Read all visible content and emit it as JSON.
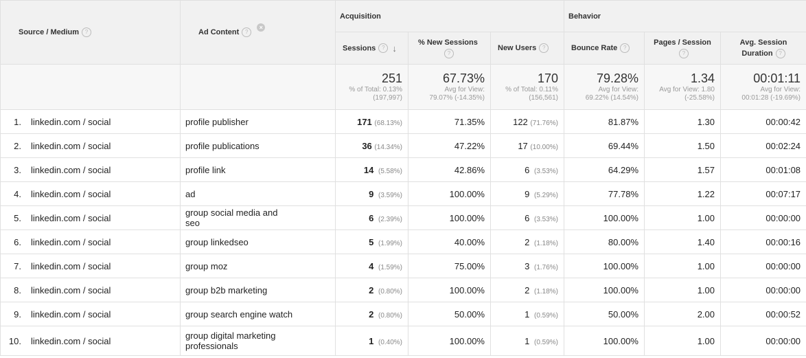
{
  "headers": {
    "source_medium": "Source / Medium",
    "ad_content": "Ad Content",
    "acquisition": "Acquisition",
    "behavior": "Behavior",
    "sessions": "Sessions",
    "new_sessions": "% New Sessions",
    "new_users": "New Users",
    "bounce_rate": "Bounce Rate",
    "pages_session": "Pages / Session",
    "avg_duration": "Avg. Session Duration"
  },
  "totals": {
    "sessions": "251",
    "sessions_sub1": "% of Total: 0.13%",
    "sessions_sub2": "(197,997)",
    "new_sessions": "67.73%",
    "new_sessions_sub1": "Avg for View:",
    "new_sessions_sub2": "79.07% (-14.35%)",
    "new_users": "170",
    "new_users_sub1": "% of Total: 0.11%",
    "new_users_sub2": "(156,561)",
    "bounce_rate": "79.28%",
    "bounce_rate_sub1": "Avg for View:",
    "bounce_rate_sub2": "69.22% (14.54%)",
    "pages_session": "1.34",
    "pages_session_sub1": "Avg for View: 1.80",
    "pages_session_sub2": "(-25.58%)",
    "avg_duration": "00:01:11",
    "avg_duration_sub1": "Avg for View:",
    "avg_duration_sub2": "00:01:28 (-19.69%)"
  },
  "rows": [
    {
      "num": "1.",
      "source": "linkedin.com / social",
      "ad": "profile publisher",
      "sessions": "171",
      "sessions_pct": "(68.13%)",
      "new_sessions": "71.35%",
      "new_users": "122",
      "new_users_pct": "(71.76%)",
      "bounce": "81.87%",
      "pages": "1.30",
      "duration": "00:00:42"
    },
    {
      "num": "2.",
      "source": "linkedin.com / social",
      "ad": "profile publications",
      "sessions": "36",
      "sessions_pct": "(14.34%)",
      "new_sessions": "47.22%",
      "new_users": "17",
      "new_users_pct": "(10.00%)",
      "bounce": "69.44%",
      "pages": "1.50",
      "duration": "00:02:24"
    },
    {
      "num": "3.",
      "source": "linkedin.com / social",
      "ad": "profile link",
      "sessions": "14",
      "sessions_pct": "(5.58%)",
      "new_sessions": "42.86%",
      "new_users": "6",
      "new_users_pct": "(3.53%)",
      "bounce": "64.29%",
      "pages": "1.57",
      "duration": "00:01:08"
    },
    {
      "num": "4.",
      "source": "linkedin.com / social",
      "ad": "ad",
      "sessions": "9",
      "sessions_pct": "(3.59%)",
      "new_sessions": "100.00%",
      "new_users": "9",
      "new_users_pct": "(5.29%)",
      "bounce": "77.78%",
      "pages": "1.22",
      "duration": "00:07:17"
    },
    {
      "num": "5.",
      "source": "linkedin.com / social",
      "ad": "group social media and seo",
      "sessions": "6",
      "sessions_pct": "(2.39%)",
      "new_sessions": "100.00%",
      "new_users": "6",
      "new_users_pct": "(3.53%)",
      "bounce": "100.00%",
      "pages": "1.00",
      "duration": "00:00:00"
    },
    {
      "num": "6.",
      "source": "linkedin.com / social",
      "ad": "group linkedseo",
      "sessions": "5",
      "sessions_pct": "(1.99%)",
      "new_sessions": "40.00%",
      "new_users": "2",
      "new_users_pct": "(1.18%)",
      "bounce": "80.00%",
      "pages": "1.40",
      "duration": "00:00:16"
    },
    {
      "num": "7.",
      "source": "linkedin.com / social",
      "ad": "group moz",
      "sessions": "4",
      "sessions_pct": "(1.59%)",
      "new_sessions": "75.00%",
      "new_users": "3",
      "new_users_pct": "(1.76%)",
      "bounce": "100.00%",
      "pages": "1.00",
      "duration": "00:00:00"
    },
    {
      "num": "8.",
      "source": "linkedin.com / social",
      "ad": "group b2b marketing",
      "sessions": "2",
      "sessions_pct": "(0.80%)",
      "new_sessions": "100.00%",
      "new_users": "2",
      "new_users_pct": "(1.18%)",
      "bounce": "100.00%",
      "pages": "1.00",
      "duration": "00:00:00"
    },
    {
      "num": "9.",
      "source": "linkedin.com / social",
      "ad": "group search engine watch",
      "sessions": "2",
      "sessions_pct": "(0.80%)",
      "new_sessions": "50.00%",
      "new_users": "1",
      "new_users_pct": "(0.59%)",
      "bounce": "50.00%",
      "pages": "2.00",
      "duration": "00:00:52"
    },
    {
      "num": "10.",
      "source": "linkedin.com / social",
      "ad": "group digital marketing professionals",
      "sessions": "1",
      "sessions_pct": "(0.40%)",
      "new_sessions": "100.00%",
      "new_users": "1",
      "new_users_pct": "(0.59%)",
      "bounce": "100.00%",
      "pages": "1.00",
      "duration": "00:00:00"
    }
  ]
}
